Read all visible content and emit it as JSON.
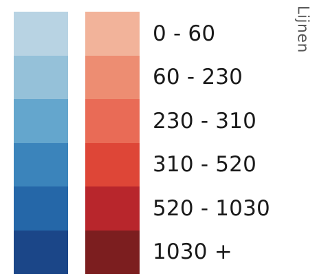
{
  "legend": {
    "title": "Lijnen",
    "classes": [
      {
        "label": "0 - 60",
        "blue": "#b8d3e3",
        "red": "#f2b39a"
      },
      {
        "label": "60 - 230",
        "blue": "#95c1d9",
        "red": "#ed8d72"
      },
      {
        "label": "230 - 310",
        "blue": "#64a6cd",
        "red": "#e96b56"
      },
      {
        "label": "310 - 520",
        "blue": "#3b84bb",
        "red": "#de4637"
      },
      {
        "label": "520 - 1030",
        "blue": "#2567a8",
        "red": "#b8262c"
      },
      {
        "label": "1030 +",
        "blue": "#1b4688",
        "red": "#7c1e1f"
      }
    ]
  }
}
